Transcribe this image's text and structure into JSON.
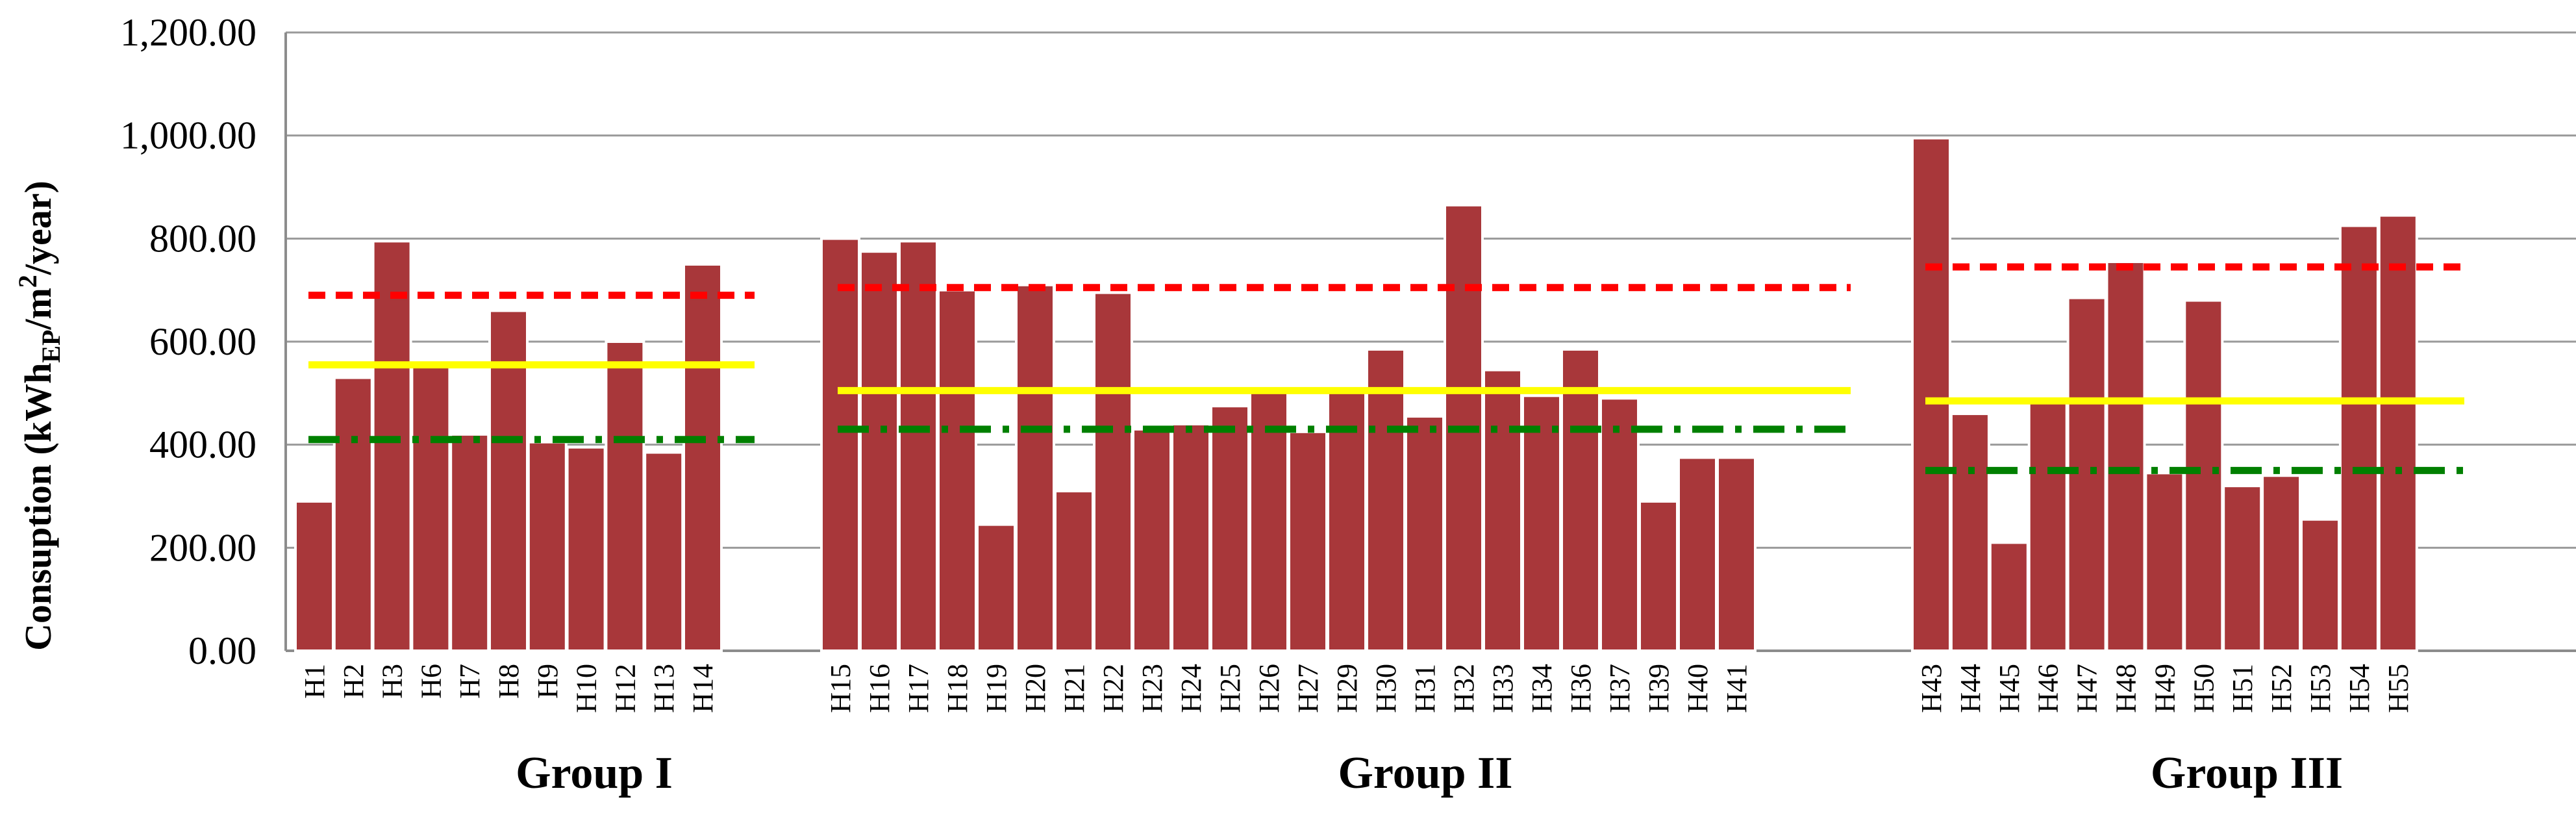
{
  "chart_data": {
    "type": "bar",
    "ylabel": {
      "prefix": "Consuption (kWh",
      "sub": "EP",
      "middle": "/m",
      "sup": "2",
      "suffix": "/year)"
    },
    "ylim": [
      0,
      1200
    ],
    "yticks": [
      "0.00",
      "200.00",
      "400.00",
      "600.00",
      "800.00",
      "1,000.00",
      "1,200.00"
    ],
    "ytick_values": [
      0,
      200,
      400,
      600,
      800,
      1000,
      1200
    ],
    "grid": true,
    "colors": {
      "bar": "#a8373a",
      "bar_edge": "#ffffff",
      "grid": "#9a9a9a",
      "axis": "#8c8c8c",
      "max_line": "#ff0000",
      "avg_line": "#ffff00",
      "min_line": "#008000"
    },
    "groups": [
      {
        "name": "Group I",
        "categories": [
          "H1",
          "H2",
          "H3",
          "H6",
          "H7",
          "H8",
          "H9",
          "H10",
          "H12",
          "H13",
          "H14"
        ],
        "values": [
          290,
          530,
          795,
          560,
          420,
          660,
          405,
          395,
          600,
          385,
          750
        ],
        "lines": {
          "max": 690,
          "avg": 555,
          "min": 410
        }
      },
      {
        "name": "Group II",
        "categories": [
          "H15",
          "H16",
          "H17",
          "H18",
          "H19",
          "H20",
          "H21",
          "H22",
          "H23",
          "H24",
          "H25",
          "H26",
          "H27",
          "H29",
          "H30",
          "H31",
          "H32",
          "H33",
          "H34",
          "H36",
          "H37",
          "H39",
          "H40",
          "H41"
        ],
        "values": [
          800,
          775,
          795,
          700,
          245,
          710,
          310,
          695,
          430,
          440,
          475,
          505,
          425,
          505,
          585,
          455,
          865,
          545,
          495,
          585,
          490,
          290,
          375,
          375
        ],
        "lines": {
          "max": 705,
          "avg": 505,
          "min": 430
        }
      },
      {
        "name": "Group III",
        "categories": [
          "H43",
          "H44",
          "H45",
          "H46",
          "H47",
          "H48",
          "H49",
          "H50",
          "H51",
          "H52",
          "H53",
          "H54",
          "H55"
        ],
        "values": [
          995,
          460,
          210,
          490,
          685,
          755,
          345,
          680,
          320,
          340,
          255,
          825,
          845
        ],
        "lines": {
          "max": 745,
          "avg": 485,
          "min": 350
        }
      }
    ]
  }
}
